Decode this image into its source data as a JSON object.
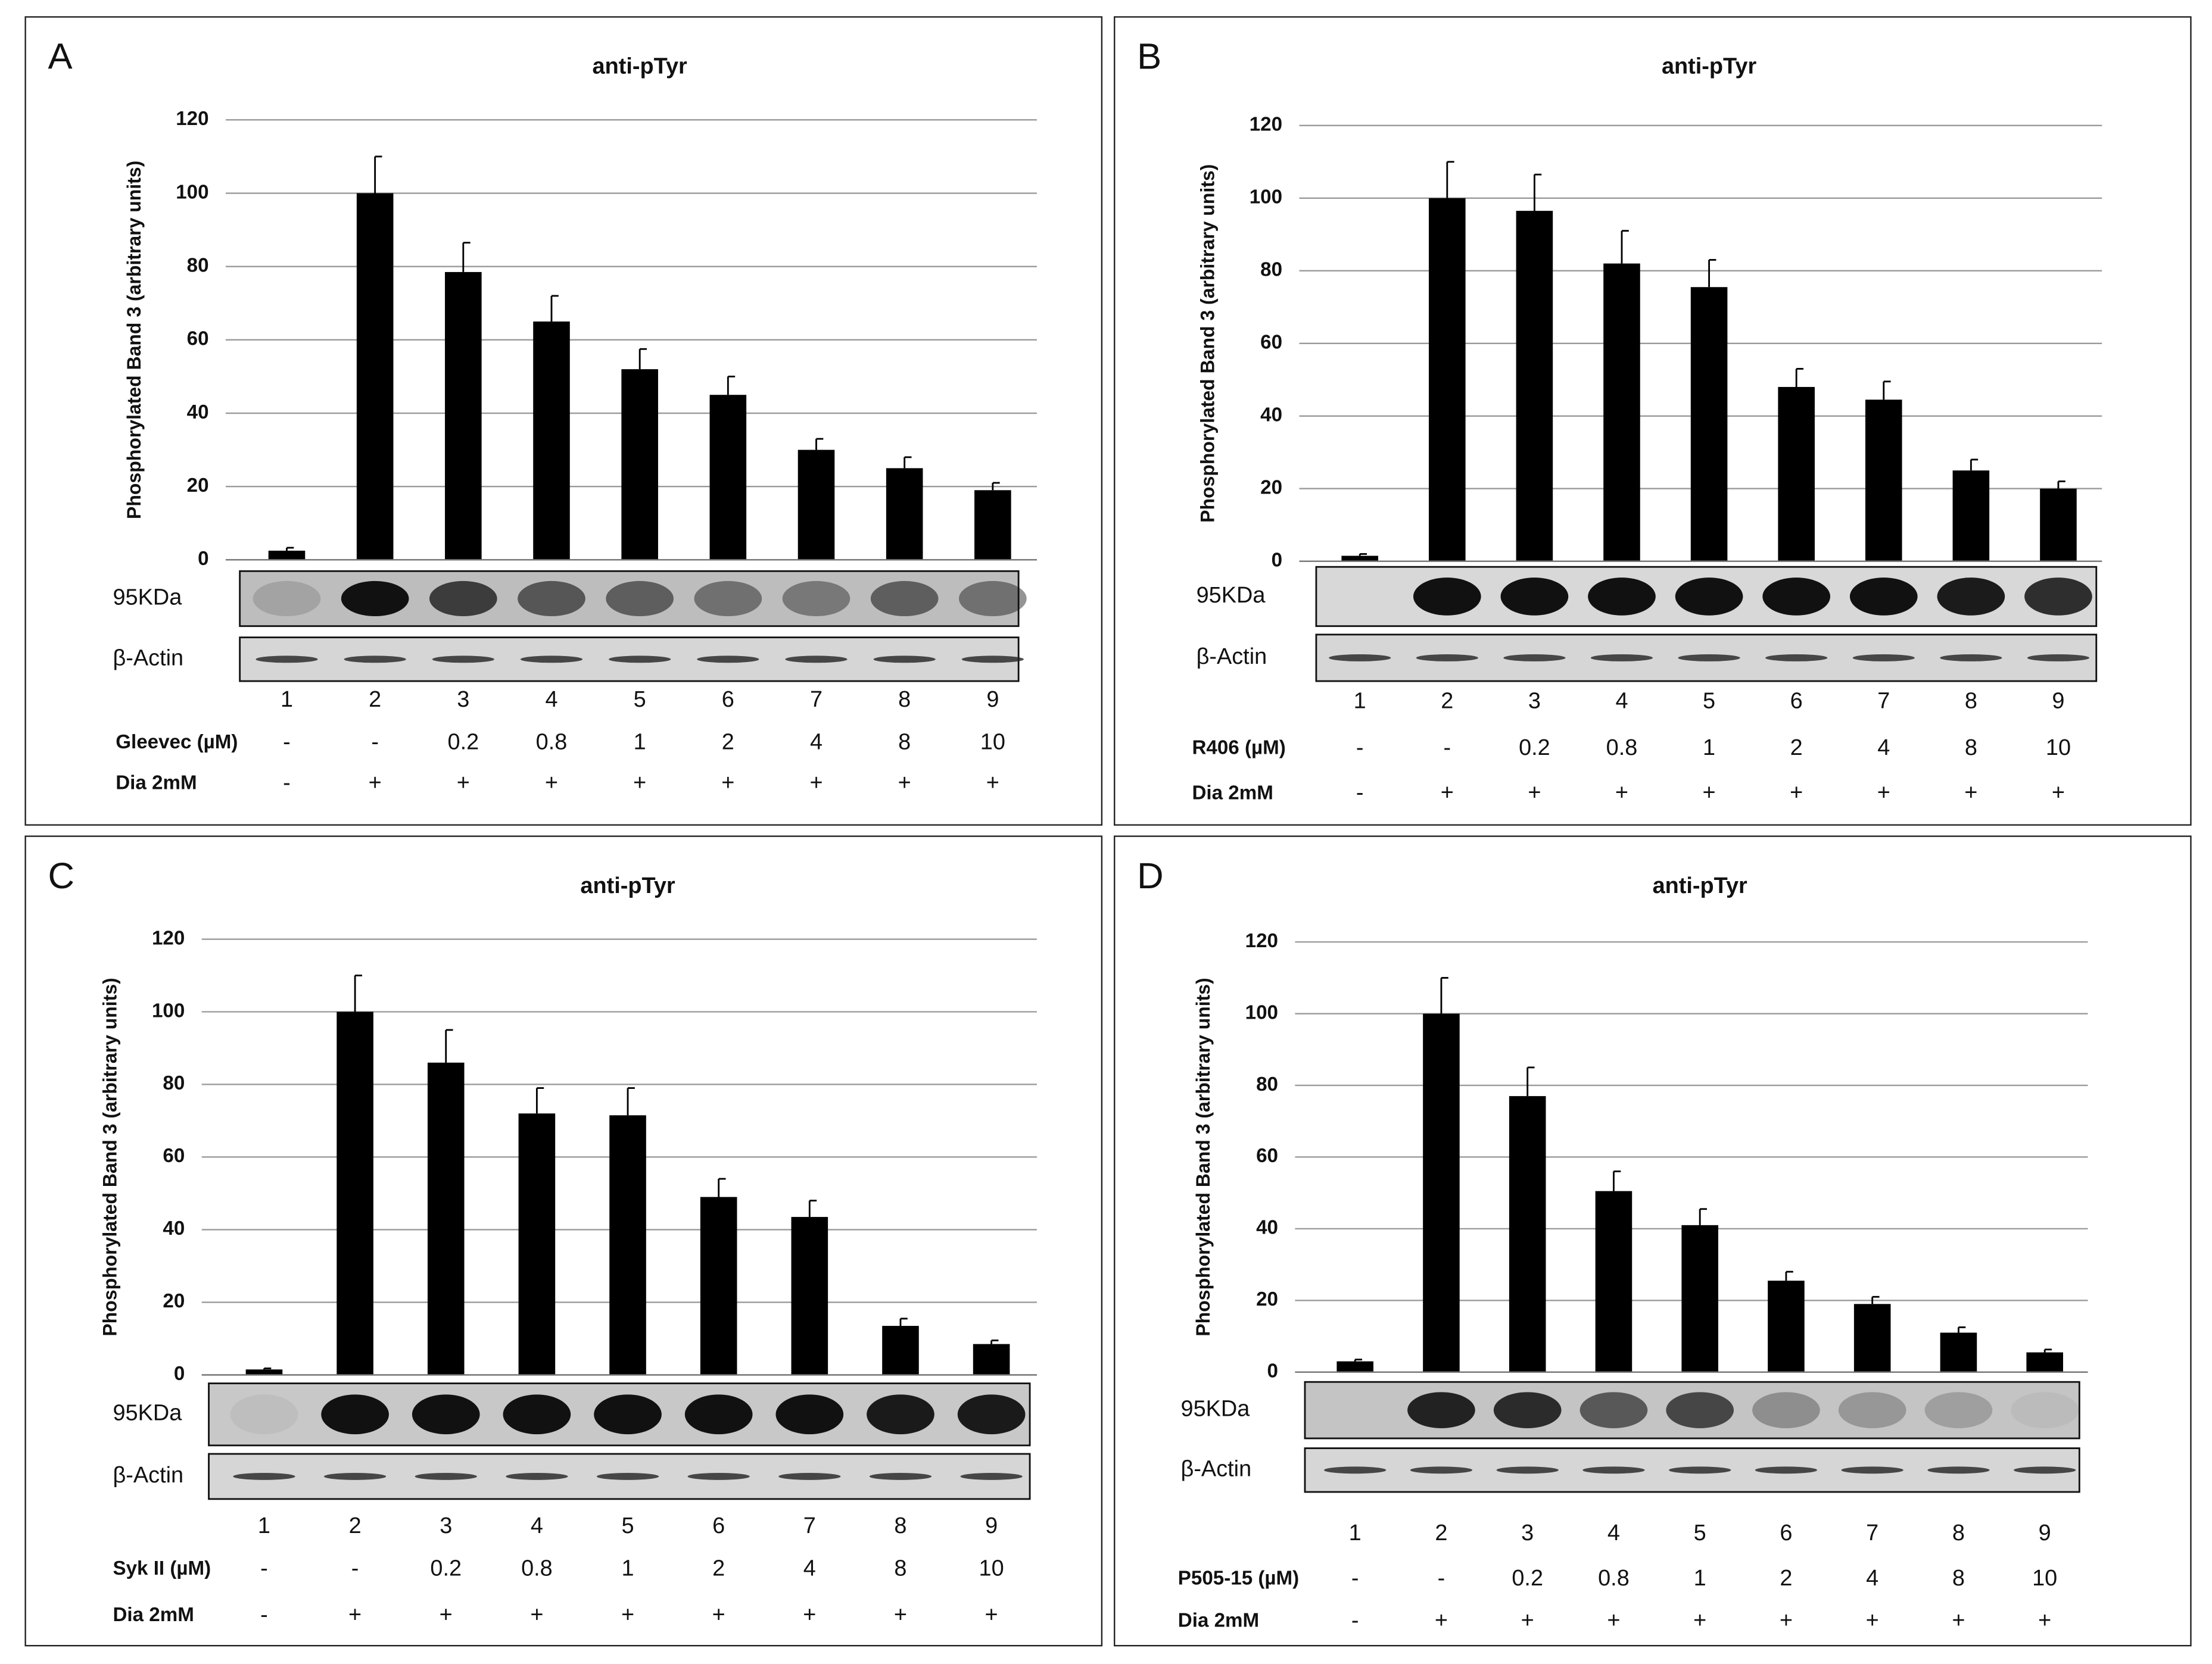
{
  "chart_data": [
    {
      "type": "bar",
      "panel": "A",
      "title": "anti-pTyr",
      "y_label": "Phosphorylated Band 3 (arbitrary units)",
      "categories": [
        "1",
        "2",
        "3",
        "4",
        "5",
        "6",
        "7",
        "8",
        "9"
      ],
      "values": [
        2.5,
        100,
        78.5,
        65,
        52,
        45,
        30,
        25,
        19
      ],
      "errors": [
        0.8,
        10,
        8,
        7,
        5.5,
        5,
        3,
        3,
        2
      ],
      "color": "#000000",
      "ylim": [
        0,
        120
      ],
      "yticks": [
        0,
        20,
        40,
        60,
        80,
        100,
        120
      ],
      "grid": true,
      "blot_labels": [
        "95KDa",
        "β-Actin"
      ],
      "treatments": [
        {
          "name": "Gleevec (µM)",
          "values": [
            "-",
            "-",
            "0.2",
            "0.8",
            "1",
            "2",
            "4",
            "8",
            "10"
          ]
        },
        {
          "name": "Dia 2mM",
          "values": [
            "-",
            "+",
            "+",
            "+",
            "+",
            "+",
            "+",
            "+",
            "+"
          ]
        }
      ]
    },
    {
      "type": "bar",
      "panel": "B",
      "title": "anti-pTyr",
      "y_label": "Phosphorylated Band 3 (arbitrary units)",
      "categories": [
        "1",
        "2",
        "3",
        "4",
        "5",
        "6",
        "7",
        "8",
        "9"
      ],
      "values": [
        1.5,
        100,
        96.5,
        82,
        75.5,
        48,
        44.5,
        25,
        20
      ],
      "errors": [
        0.5,
        10,
        10,
        9,
        7.5,
        5,
        5,
        3,
        2
      ],
      "color": "#000000",
      "ylim": [
        0,
        120
      ],
      "yticks": [
        0,
        20,
        40,
        60,
        80,
        100,
        120
      ],
      "grid": true,
      "blot_labels": [
        "95KDa",
        "β-Actin"
      ],
      "treatments": [
        {
          "name": "R406 (µM)",
          "values": [
            "-",
            "-",
            "0.2",
            "0.8",
            "1",
            "2",
            "4",
            "8",
            "10"
          ]
        },
        {
          "name": "Dia 2mM",
          "values": [
            "-",
            "+",
            "+",
            "+",
            "+",
            "+",
            "+",
            "+",
            "+"
          ]
        }
      ]
    },
    {
      "type": "bar",
      "panel": "C",
      "title": "anti-pTyr",
      "y_label": "Phosphorylated Band 3 (arbitrary units)",
      "categories": [
        "1",
        "2",
        "3",
        "4",
        "5",
        "6",
        "7",
        "8",
        "9"
      ],
      "values": [
        1.5,
        100,
        86,
        72,
        71.5,
        49,
        43.5,
        13.5,
        8.5
      ],
      "errors": [
        0.3,
        10,
        9,
        7,
        7.5,
        5,
        4.5,
        2,
        1
      ],
      "color": "#000000",
      "ylim": [
        0,
        120
      ],
      "yticks": [
        0,
        20,
        40,
        60,
        80,
        100,
        120
      ],
      "grid": true,
      "blot_labels": [
        "95KDa",
        "β-Actin"
      ],
      "treatments": [
        {
          "name": "Syk II (µM)",
          "values": [
            "-",
            "-",
            "0.2",
            "0.8",
            "1",
            "2",
            "4",
            "8",
            "10"
          ]
        },
        {
          "name": "Dia 2mM",
          "values": [
            "-",
            "+",
            "+",
            "+",
            "+",
            "+",
            "+",
            "+",
            "+"
          ]
        }
      ]
    },
    {
      "type": "bar",
      "panel": "D",
      "title": "anti-pTyr",
      "y_label": "Phosphorylated Band 3 (arbitrary units)",
      "categories": [
        "1",
        "2",
        "3",
        "4",
        "5",
        "6",
        "7",
        "8",
        "9"
      ],
      "values": [
        3,
        100,
        77,
        50.5,
        41,
        25.5,
        19,
        11,
        5.5
      ],
      "errors": [
        0.5,
        10,
        8,
        5.5,
        4.5,
        2.5,
        2,
        1.5,
        0.8
      ],
      "color": "#000000",
      "ylim": [
        0,
        120
      ],
      "yticks": [
        0,
        20,
        40,
        60,
        80,
        100,
        120
      ],
      "grid": true,
      "blot_labels": [
        "95KDa",
        "β-Actin"
      ],
      "treatments": [
        {
          "name": "P505-15 (µM)",
          "values": [
            "-",
            "-",
            "0.2",
            "0.8",
            "1",
            "2",
            "4",
            "8",
            "10"
          ]
        },
        {
          "name": "Dia 2mM",
          "values": [
            "-",
            "+",
            "+",
            "+",
            "+",
            "+",
            "+",
            "+",
            "+"
          ]
        }
      ]
    }
  ]
}
